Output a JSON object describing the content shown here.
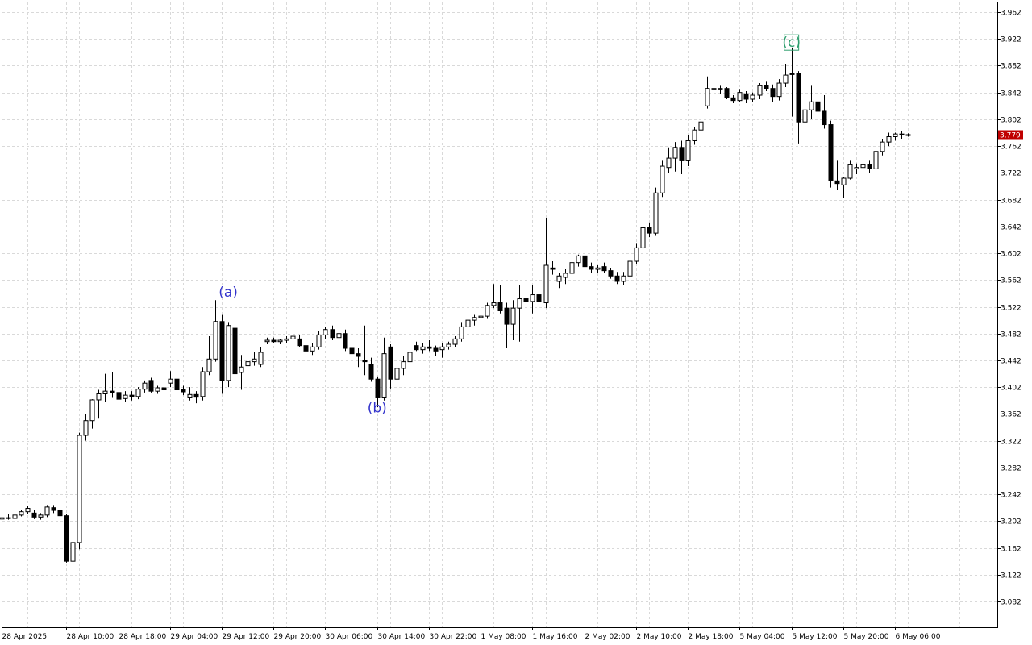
{
  "chart_data": {
    "type": "candlestick",
    "title": "",
    "xlabel": "",
    "ylabel": "",
    "ylim": [
      3.062,
      3.976
    ],
    "grid": true,
    "y_ticks": [
      "3.962",
      "3.922",
      "3.882",
      "3.842",
      "3.802",
      "3.762",
      "3.722",
      "3.682",
      "3.642",
      "3.602",
      "3.562",
      "3.522",
      "3.482",
      "3.442",
      "3.402",
      "3.362",
      "3.322",
      "3.282",
      "3.242",
      "3.202",
      "3.162",
      "3.122",
      "3.082"
    ],
    "x_ticks": [
      {
        "label": "28 Apr 2025",
        "bar": 0
      },
      {
        "label": "28 Apr 10:00",
        "bar": 10
      },
      {
        "label": "28 Apr 18:00",
        "bar": 18
      },
      {
        "label": "29 Apr 04:00",
        "bar": 26
      },
      {
        "label": "29 Apr 12:00",
        "bar": 34
      },
      {
        "label": "29 Apr 20:00",
        "bar": 42
      },
      {
        "label": "30 Apr 06:00",
        "bar": 50
      },
      {
        "label": "30 Apr 14:00",
        "bar": 58
      },
      {
        "label": "30 Apr 22:00",
        "bar": 66
      },
      {
        "label": "1 May 08:00",
        "bar": 74
      },
      {
        "label": "1 May 16:00",
        "bar": 82
      },
      {
        "label": "2 May 02:00",
        "bar": 90
      },
      {
        "label": "2 May 10:00",
        "bar": 98
      },
      {
        "label": "2 May 18:00",
        "bar": 106
      },
      {
        "label": "5 May 04:00",
        "bar": 114
      },
      {
        "label": "5 May 12:00",
        "bar": 122
      },
      {
        "label": "5 May 20:00",
        "bar": 130
      },
      {
        "label": "6 May 06:00",
        "bar": 138
      }
    ],
    "current_price": "3.779",
    "colors": {
      "up": "#ffffff",
      "down": "#000000",
      "wick": "#000000",
      "price_line": "#c00000",
      "grid": "#d9d9d9",
      "wave_ab": "#3333cc",
      "wave_c": "#2e9e6e"
    },
    "annotations": [
      {
        "text": "(a)",
        "bar": 35,
        "price": 3.537,
        "color": "wave_ab"
      },
      {
        "text": "(b)",
        "bar": 58,
        "price": 3.364,
        "color": "wave_ab"
      },
      {
        "text": "(c)",
        "bar": 122,
        "price": 3.91,
        "color": "wave_c"
      }
    ],
    "candles": [
      [
        3.205,
        3.208,
        3.202,
        3.207
      ],
      [
        3.207,
        3.212,
        3.204,
        3.206
      ],
      [
        3.206,
        3.214,
        3.203,
        3.211
      ],
      [
        3.211,
        3.219,
        3.209,
        3.216
      ],
      [
        3.216,
        3.224,
        3.213,
        3.221
      ],
      [
        3.214,
        3.218,
        3.205,
        3.208
      ],
      [
        3.208,
        3.214,
        3.204,
        3.211
      ],
      [
        3.211,
        3.226,
        3.208,
        3.223
      ],
      [
        3.222,
        3.226,
        3.214,
        3.218
      ],
      [
        3.218,
        3.222,
        3.208,
        3.21
      ],
      [
        3.21,
        3.213,
        3.14,
        3.142
      ],
      [
        3.142,
        3.172,
        3.122,
        3.17
      ],
      [
        3.17,
        3.334,
        3.16,
        3.33
      ],
      [
        3.33,
        3.362,
        3.322,
        3.352
      ],
      [
        3.352,
        3.384,
        3.34,
        3.383
      ],
      [
        3.383,
        3.398,
        3.355,
        3.392
      ],
      [
        3.392,
        3.422,
        3.38,
        3.396
      ],
      [
        3.396,
        3.424,
        3.386,
        3.394
      ],
      [
        3.394,
        3.398,
        3.38,
        3.384
      ],
      [
        3.385,
        3.396,
        3.38,
        3.39
      ],
      [
        3.39,
        3.396,
        3.382,
        3.388
      ],
      [
        3.388,
        3.402,
        3.384,
        3.399
      ],
      [
        3.399,
        3.412,
        3.394,
        3.408
      ],
      [
        3.412,
        3.416,
        3.394,
        3.396
      ],
      [
        3.396,
        3.404,
        3.392,
        3.401
      ],
      [
        3.401,
        3.404,
        3.394,
        3.398
      ],
      [
        3.408,
        3.426,
        3.402,
        3.414
      ],
      [
        3.414,
        3.418,
        3.394,
        3.398
      ],
      [
        3.398,
        3.404,
        3.39,
        3.395
      ],
      [
        3.386,
        3.402,
        3.382,
        3.391
      ],
      [
        3.391,
        3.396,
        3.378,
        3.387
      ],
      [
        3.388,
        3.432,
        3.382,
        3.425
      ],
      [
        3.425,
        3.478,
        3.42,
        3.444
      ],
      [
        3.444,
        3.532,
        3.44,
        3.5
      ],
      [
        3.5,
        3.51,
        3.392,
        3.412
      ],
      [
        3.412,
        3.498,
        3.402,
        3.494
      ],
      [
        3.49,
        3.498,
        3.404,
        3.422
      ],
      [
        3.424,
        3.45,
        3.398,
        3.432
      ],
      [
        3.434,
        3.466,
        3.428,
        3.44
      ],
      [
        3.44,
        3.454,
        3.434,
        3.444
      ],
      [
        3.436,
        3.462,
        3.432,
        3.454
      ],
      [
        3.47,
        3.476,
        3.466,
        3.472
      ],
      [
        3.472,
        3.476,
        3.468,
        3.47
      ],
      [
        3.47,
        3.474,
        3.466,
        3.472
      ],
      [
        3.472,
        3.478,
        3.468,
        3.474
      ],
      [
        3.474,
        3.482,
        3.47,
        3.478
      ],
      [
        3.474,
        3.48,
        3.462,
        3.464
      ],
      [
        3.464,
        3.466,
        3.452,
        3.456
      ],
      [
        3.456,
        3.468,
        3.45,
        3.462
      ],
      [
        3.462,
        3.486,
        3.458,
        3.48
      ],
      [
        3.48,
        3.492,
        3.474,
        3.488
      ],
      [
        3.488,
        3.494,
        3.472,
        3.476
      ],
      [
        3.476,
        3.492,
        3.466,
        3.482
      ],
      [
        3.482,
        3.488,
        3.456,
        3.46
      ],
      [
        3.46,
        3.47,
        3.448,
        3.452
      ],
      [
        3.452,
        3.46,
        3.432,
        3.448
      ],
      [
        3.442,
        3.494,
        3.42,
        3.44
      ],
      [
        3.436,
        3.446,
        3.41,
        3.414
      ],
      [
        3.414,
        3.418,
        3.372,
        3.386
      ],
      [
        3.386,
        3.476,
        3.382,
        3.452
      ],
      [
        3.462,
        3.466,
        3.4,
        3.414
      ],
      [
        3.414,
        3.432,
        3.386,
        3.43
      ],
      [
        3.43,
        3.448,
        3.42,
        3.44
      ],
      [
        3.44,
        3.462,
        3.436,
        3.454
      ],
      [
        3.464,
        3.47,
        3.456,
        3.458
      ],
      [
        3.458,
        3.468,
        3.452,
        3.462
      ],
      [
        3.462,
        3.472,
        3.456,
        3.46
      ],
      [
        3.46,
        3.464,
        3.448,
        3.456
      ],
      [
        3.458,
        3.468,
        3.446,
        3.462
      ],
      [
        3.462,
        3.47,
        3.458,
        3.466
      ],
      [
        3.466,
        3.478,
        3.462,
        3.474
      ],
      [
        3.474,
        3.498,
        3.47,
        3.492
      ],
      [
        3.492,
        3.508,
        3.486,
        3.502
      ],
      [
        3.502,
        3.51,
        3.494,
        3.506
      ],
      [
        3.506,
        3.512,
        3.5,
        3.508
      ],
      [
        3.508,
        3.528,
        3.504,
        3.524
      ],
      [
        3.524,
        3.556,
        3.52,
        3.528
      ],
      [
        3.528,
        3.554,
        3.512,
        3.516
      ],
      [
        3.52,
        3.528,
        3.46,
        3.496
      ],
      [
        3.496,
        3.532,
        3.472,
        3.52
      ],
      [
        3.52,
        3.554,
        3.47,
        3.534
      ],
      [
        3.534,
        3.56,
        3.518,
        3.53
      ],
      [
        3.53,
        3.554,
        3.512,
        3.54
      ],
      [
        3.54,
        3.562,
        3.522,
        3.53
      ],
      [
        3.528,
        3.654,
        3.52,
        3.584
      ],
      [
        3.58,
        3.59,
        3.57,
        3.578
      ],
      [
        3.56,
        3.572,
        3.55,
        3.568
      ],
      [
        3.566,
        3.578,
        3.556,
        3.572
      ],
      [
        3.572,
        3.592,
        3.548,
        3.588
      ],
      [
        3.588,
        3.6,
        3.582,
        3.598
      ],
      [
        3.598,
        3.6,
        3.578,
        3.582
      ],
      [
        3.582,
        3.588,
        3.572,
        3.578
      ],
      [
        3.578,
        3.584,
        3.572,
        3.58
      ],
      [
        3.582,
        3.588,
        3.572,
        3.576
      ],
      [
        3.576,
        3.58,
        3.564,
        3.568
      ],
      [
        3.568,
        3.574,
        3.556,
        3.56
      ],
      [
        3.56,
        3.574,
        3.554,
        3.568
      ],
      [
        3.568,
        3.592,
        3.562,
        3.59
      ],
      [
        3.59,
        3.616,
        3.586,
        3.61
      ],
      [
        3.61,
        3.646,
        3.606,
        3.64
      ],
      [
        3.64,
        3.648,
        3.626,
        3.632
      ],
      [
        3.632,
        3.7,
        3.628,
        3.692
      ],
      [
        3.692,
        3.74,
        3.686,
        3.732
      ],
      [
        3.73,
        3.76,
        3.722,
        3.744
      ],
      [
        3.744,
        3.768,
        3.724,
        3.76
      ],
      [
        3.76,
        3.77,
        3.72,
        3.74
      ],
      [
        3.74,
        3.778,
        3.732,
        3.77
      ],
      [
        3.77,
        3.79,
        3.764,
        3.786
      ],
      [
        3.786,
        3.81,
        3.78,
        3.798
      ],
      [
        3.822,
        3.866,
        3.818,
        3.848
      ],
      [
        3.848,
        3.852,
        3.842,
        3.846
      ],
      [
        3.846,
        3.852,
        3.84,
        3.848
      ],
      [
        3.848,
        3.85,
        3.832,
        3.834
      ],
      [
        3.834,
        3.838,
        3.826,
        3.83
      ],
      [
        3.83,
        3.846,
        3.828,
        3.842
      ],
      [
        3.84,
        3.844,
        3.826,
        3.832
      ],
      [
        3.832,
        3.842,
        3.828,
        3.838
      ],
      [
        3.838,
        3.856,
        3.832,
        3.852
      ],
      [
        3.852,
        3.858,
        3.844,
        3.848
      ],
      [
        3.848,
        3.854,
        3.828,
        3.836
      ],
      [
        3.836,
        3.862,
        3.83,
        3.856
      ],
      [
        3.856,
        3.884,
        3.85,
        3.868
      ],
      [
        3.87,
        3.908,
        3.806,
        3.87
      ],
      [
        3.87,
        3.874,
        3.766,
        3.798
      ],
      [
        3.798,
        3.83,
        3.77,
        3.816
      ],
      [
        3.816,
        3.852,
        3.802,
        3.828
      ],
      [
        3.828,
        3.832,
        3.79,
        3.814
      ],
      [
        3.814,
        3.838,
        3.788,
        3.794
      ],
      [
        3.794,
        3.8,
        3.7,
        3.71
      ],
      [
        3.71,
        3.74,
        3.696,
        3.706
      ],
      [
        3.704,
        3.716,
        3.684,
        3.714
      ],
      [
        3.714,
        3.74,
        3.712,
        3.734
      ],
      [
        3.728,
        3.736,
        3.72,
        3.73
      ],
      [
        3.73,
        3.738,
        3.724,
        3.734
      ],
      [
        3.734,
        3.74,
        3.722,
        3.728
      ],
      [
        3.728,
        3.758,
        3.724,
        3.754
      ],
      [
        3.754,
        3.772,
        3.748,
        3.768
      ],
      [
        3.768,
        3.782,
        3.762,
        3.776
      ],
      [
        3.776,
        3.782,
        3.77,
        3.78
      ],
      [
        3.78,
        3.784,
        3.772,
        3.779
      ],
      [
        3.779,
        3.781,
        3.776,
        3.779
      ]
    ]
  }
}
